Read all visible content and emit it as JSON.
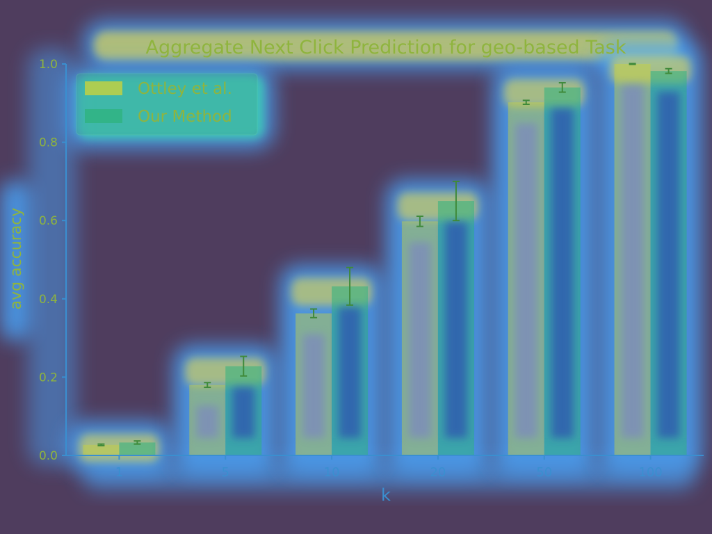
{
  "colors": {
    "background": "#4f3d5e",
    "glow_outer": "#4aa8ff",
    "glow_mid": "#39e6a8",
    "glow_hot": "#f0dd40",
    "series_ottley": "#c9d23c",
    "series_ours": "#2fb37f",
    "text": "#8fb43e",
    "axis": "#3a8fd0"
  },
  "chart_data": {
    "type": "bar",
    "title": "Aggregate Next Click Prediction for geo-based Task",
    "xlabel": "k",
    "ylabel": "avg accuracy",
    "categories": [
      "1",
      "5",
      "10",
      "20",
      "50",
      "100"
    ],
    "series": [
      {
        "name": "Ottley et al.",
        "values": [
          0.027,
          0.18,
          0.363,
          0.598,
          0.902,
          1.0
        ],
        "errors": [
          0.002,
          0.006,
          0.011,
          0.013,
          0.005,
          0.001
        ]
      },
      {
        "name": "Our Method",
        "values": [
          0.033,
          0.228,
          0.432,
          0.65,
          0.94,
          0.982
        ],
        "errors": [
          0.004,
          0.025,
          0.048,
          0.05,
          0.012,
          0.006
        ]
      }
    ],
    "ylim": [
      0.0,
      1.0
    ],
    "yticks": [
      "0.0",
      "0.2",
      "0.4",
      "0.6",
      "0.8",
      "1.0"
    ],
    "legend_position": "top-left",
    "grid": false
  }
}
